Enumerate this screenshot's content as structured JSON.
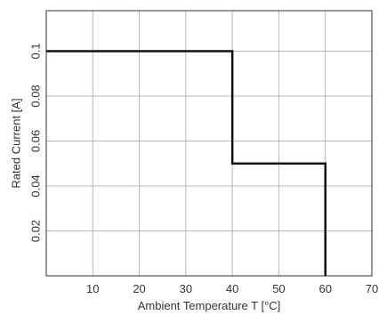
{
  "chart_data": {
    "type": "line",
    "xlabel": "Ambient Temperature T [°C]",
    "ylabel": "Rated Current [A]",
    "xlim": [
      0,
      70
    ],
    "ylim": [
      0,
      0.118
    ],
    "x_ticks": [
      10,
      20,
      30,
      40,
      50,
      60,
      70
    ],
    "x_tick_labels": [
      "10",
      "20",
      "30",
      "40",
      "50",
      "60",
      "70"
    ],
    "y_ticks": [
      0.02,
      0.04,
      0.06,
      0.08,
      0.1
    ],
    "y_tick_labels": [
      "0.02",
      "0.04",
      "0.06",
      "0.08",
      "0.1"
    ],
    "grid": true,
    "series": [
      {
        "x": [
          0,
          40,
          40,
          60,
          60
        ],
        "y": [
          0.1,
          0.1,
          0.05,
          0.05,
          0
        ],
        "color": "#111111"
      }
    ]
  }
}
